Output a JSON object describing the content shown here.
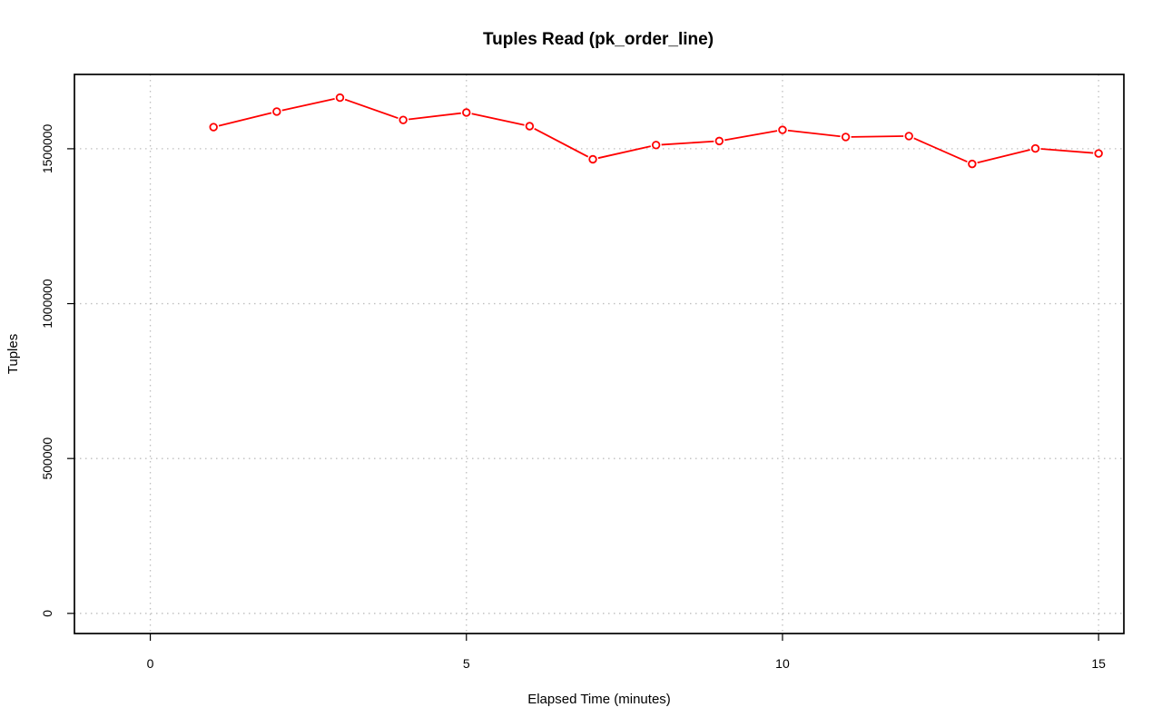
{
  "chart_data": {
    "type": "line",
    "title": "Tuples Read (pk_order_line)",
    "xlabel": "Elapsed Time (minutes)",
    "ylabel": "Tuples",
    "xlim": [
      -1.2,
      15.4
    ],
    "ylim": [
      -65000,
      1740000
    ],
    "x_ticks": [
      0,
      5,
      10,
      15
    ],
    "x_tick_labels": [
      "0",
      "5",
      "10",
      "15"
    ],
    "y_ticks": [
      0,
      500000,
      1000000,
      1500000
    ],
    "y_tick_labels": [
      "0",
      "500000",
      "1000000",
      "1500000"
    ],
    "grid": true,
    "color": "#ff0000",
    "marker": "open-circle",
    "series": [
      {
        "x": [
          1,
          2,
          3,
          4,
          5,
          6,
          7,
          8,
          9,
          10,
          11,
          12,
          13,
          14,
          15
        ],
        "values": [
          1570000,
          1620000,
          1665000,
          1593000,
          1617000,
          1573000,
          1466000,
          1512000,
          1525000,
          1561000,
          1538000,
          1541000,
          1451000,
          1501000,
          1485000
        ]
      }
    ]
  }
}
